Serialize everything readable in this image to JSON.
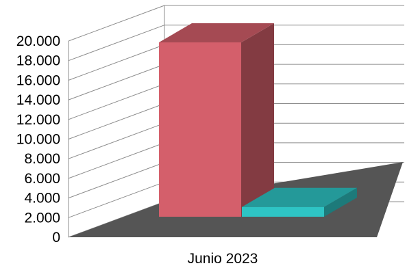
{
  "chart_data": {
    "type": "bar",
    "style": "3d-clustered-column",
    "categories": [
      "Junio 2023"
    ],
    "series": [
      {
        "values": [
          19600
        ],
        "color": "#d45f6b"
      },
      {
        "values": [
          1100
        ],
        "color": "#2ec4c4"
      }
    ],
    "ylim": [
      0,
      20000
    ],
    "yticks": [
      "0",
      "2.000",
      "4.000",
      "6.000",
      "8.000",
      "10.000",
      "12.000",
      "14.000",
      "16.000",
      "18.000",
      "20.000"
    ],
    "grid": true,
    "floor_color": "#555555",
    "legend": "none"
  }
}
